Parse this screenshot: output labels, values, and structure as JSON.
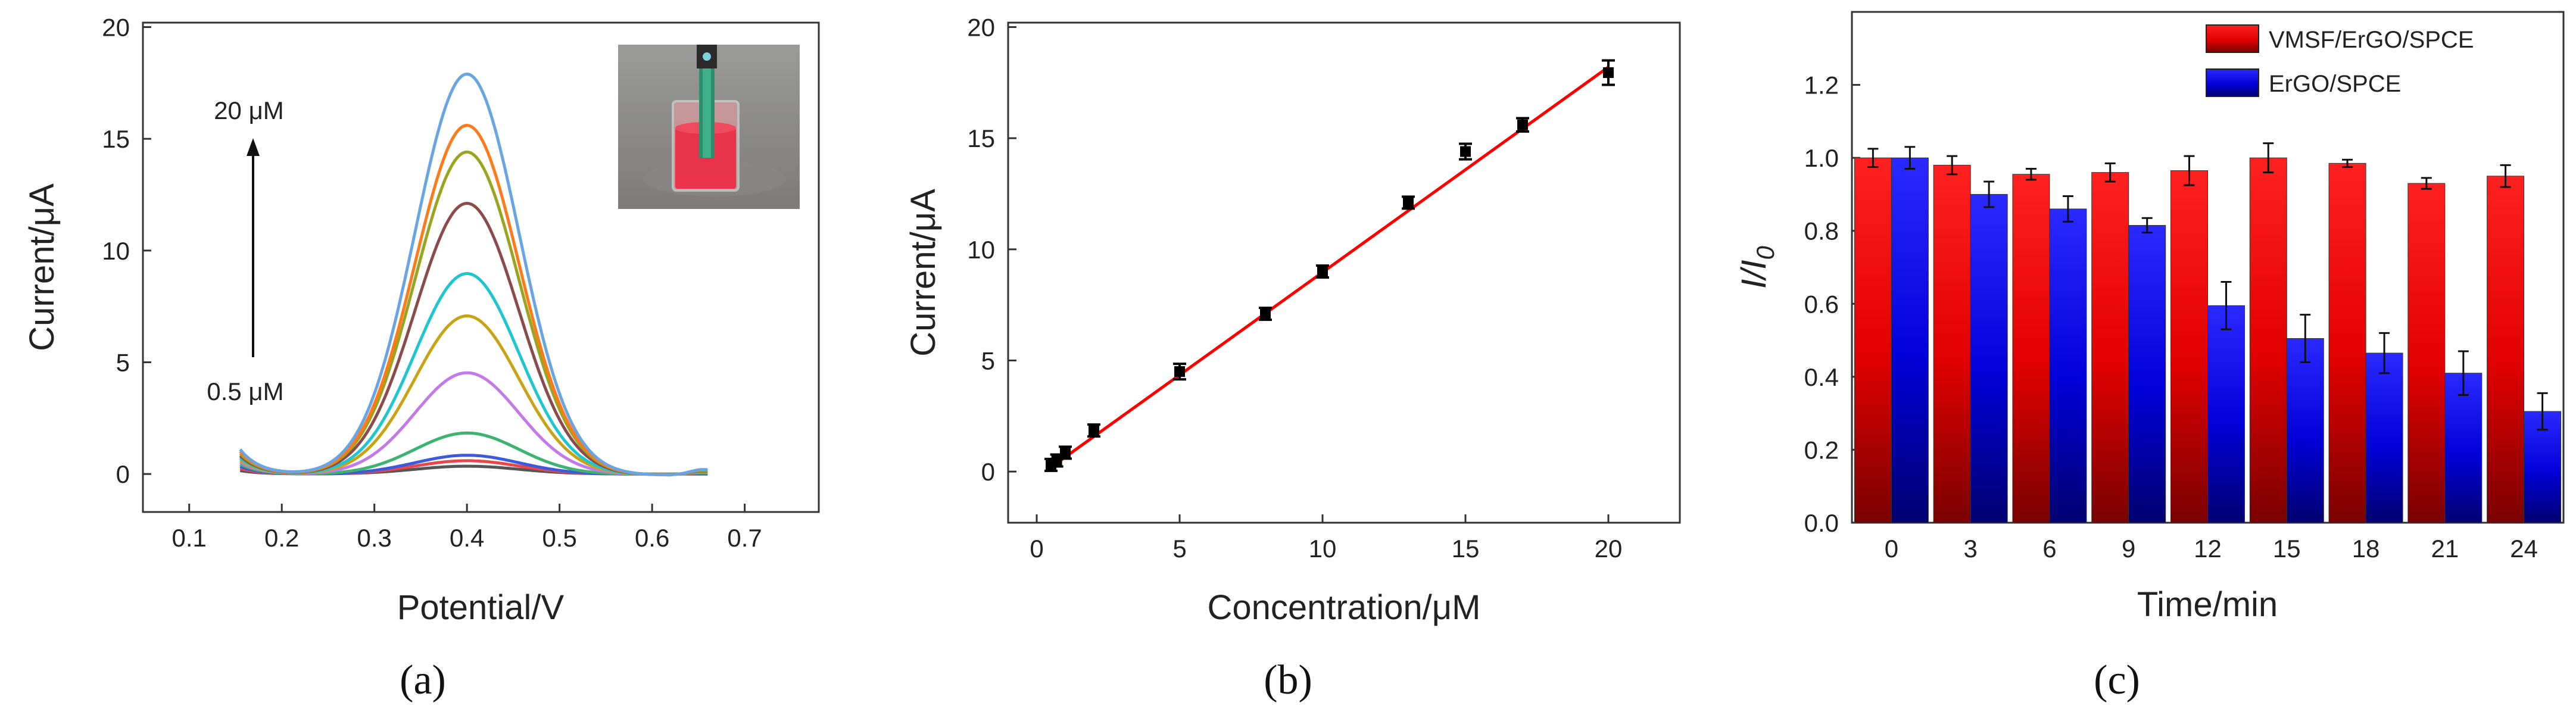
{
  "panel_labels": [
    "(a)",
    "(b)",
    "(c)"
  ],
  "chart_data": [
    {
      "type": "line",
      "xlabel": "Potential/V",
      "ylabel": "Current/μA",
      "xlim": [
        0.05,
        0.78
      ],
      "ylim": [
        -1.7,
        20.2
      ],
      "xticks": [
        0.1,
        0.2,
        0.3,
        0.4,
        0.5,
        0.6,
        0.7
      ],
      "xtick_labels": [
        "0.1",
        "0.2",
        "0.3",
        "0.4",
        "0.5",
        "0.6",
        "0.7"
      ],
      "yticks": [
        0,
        5,
        10,
        15,
        20
      ],
      "ytick_labels": [
        "0",
        "5",
        "10",
        "15",
        "20"
      ],
      "x_range": [
        0.155,
        0.66
      ],
      "peak_potential": 0.4,
      "annotations": {
        "top": "20 μM",
        "bottom": "0.5 μM"
      },
      "inset": "photo of a pen-type electrode dipped in a beaker of red solution",
      "series": [
        {
          "peak": 0.35,
          "color": "#555555"
        },
        {
          "peak": 0.6,
          "color": "#e8464d"
        },
        {
          "peak": 0.85,
          "color": "#3b5bdb"
        },
        {
          "peak": 1.85,
          "color": "#3cb371"
        },
        {
          "peak": 4.55,
          "color": "#c27ae6"
        },
        {
          "peak": 7.1,
          "color": "#c8a415"
        },
        {
          "peak": 9.0,
          "color": "#20c6cf"
        },
        {
          "peak": 12.15,
          "color": "#8b4b4b"
        },
        {
          "peak": 14.45,
          "color": "#9aa41e"
        },
        {
          "peak": 15.65,
          "color": "#ff7a1a"
        },
        {
          "peak": 17.95,
          "color": "#6aa5e3"
        }
      ]
    },
    {
      "type": "scatter",
      "xlabel": "Concentration/μM",
      "ylabel": "Current/μA",
      "xlim": [
        -1,
        22.5
      ],
      "ylim": [
        -2.3,
        20.2
      ],
      "xticks": [
        0,
        5,
        10,
        15,
        20
      ],
      "xtick_labels": [
        "0",
        "5",
        "10",
        "15",
        "20"
      ],
      "yticks": [
        0,
        5,
        10,
        15,
        20
      ],
      "ytick_labels": [
        "0",
        "5",
        "10",
        "15",
        "20"
      ],
      "point_color": "#000000",
      "fit_color": "#ff0000",
      "fit_line": {
        "x": [
          0.4,
          20
        ],
        "y": [
          0.1,
          18.2
        ]
      },
      "points": [
        {
          "x": 0.5,
          "y": 0.3,
          "err": 0.2
        },
        {
          "x": 0.7,
          "y": 0.5,
          "err": 0.2
        },
        {
          "x": 1.0,
          "y": 0.85,
          "err": 0.2
        },
        {
          "x": 2.0,
          "y": 1.85,
          "err": 0.15
        },
        {
          "x": 5.0,
          "y": 4.5,
          "err": 0.35
        },
        {
          "x": 8.0,
          "y": 7.1,
          "err": 0.2
        },
        {
          "x": 10.0,
          "y": 9.0,
          "err": 0.2
        },
        {
          "x": 13.0,
          "y": 12.1,
          "err": 0.2
        },
        {
          "x": 15.0,
          "y": 14.4,
          "err": 0.35
        },
        {
          "x": 17.0,
          "y": 15.6,
          "err": 0.3
        },
        {
          "x": 20.0,
          "y": 17.95,
          "err": 0.55
        }
      ]
    },
    {
      "type": "bar",
      "xlabel": "Time/min",
      "ylabel": "I/I",
      "ylabel_sub": "0",
      "categories": [
        "0",
        "3",
        "6",
        "9",
        "12",
        "15",
        "18",
        "21",
        "24"
      ],
      "ylim": [
        0.0,
        1.4
      ],
      "yticks": [
        0.0,
        0.2,
        0.4,
        0.6,
        0.8,
        1.0,
        1.2
      ],
      "ytick_labels": [
        "0.0",
        "0.2",
        "0.4",
        "0.6",
        "0.8",
        "1.0",
        "1.2"
      ],
      "legend_position": "top-right",
      "series": [
        {
          "name": "VMSF/ErGO/SPCE",
          "color": "#ff1a1a",
          "values": [
            1.0,
            0.98,
            0.955,
            0.96,
            0.965,
            1.0,
            0.985,
            0.93,
            0.95
          ],
          "errors": [
            0.025,
            0.025,
            0.015,
            0.025,
            0.04,
            0.04,
            0.01,
            0.015,
            0.03
          ]
        },
        {
          "name": "ErGO/SPCE",
          "color": "#1a1aff",
          "values": [
            1.0,
            0.9,
            0.86,
            0.815,
            0.595,
            0.505,
            0.465,
            0.41,
            0.305
          ],
          "errors": [
            0.03,
            0.035,
            0.035,
            0.02,
            0.065,
            0.065,
            0.055,
            0.06,
            0.05
          ]
        }
      ]
    }
  ]
}
